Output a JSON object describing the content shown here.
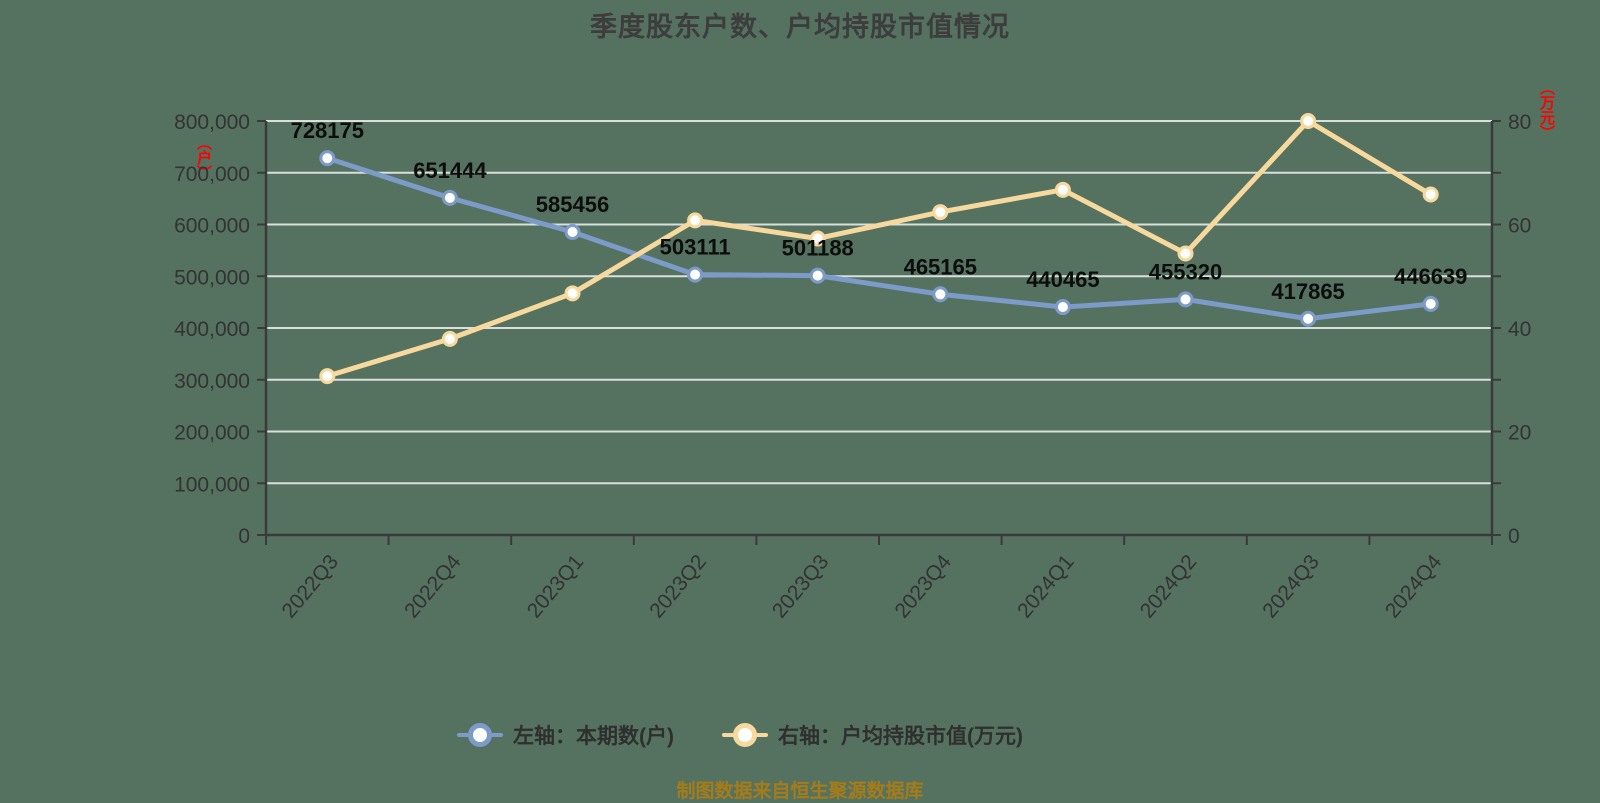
{
  "title": "季度股东户数、户均持股市值情况",
  "caption": "制图数据来自恒生聚源数据库",
  "left_axis": {
    "unit": "（户）",
    "tick_labels": [
      "0",
      "100,000",
      "200,000",
      "300,000",
      "400,000",
      "500,000",
      "600,000",
      "700,000",
      "800,000"
    ],
    "range": [
      0,
      800000
    ]
  },
  "right_axis": {
    "unit": "（万元）",
    "tick_labels": [
      "0",
      "20",
      "40",
      "60",
      "80"
    ],
    "range": [
      0,
      80
    ]
  },
  "legend": [
    {
      "label": "左轴：本期数(户)",
      "color": "#7d9bc8"
    },
    {
      "label": "右轴：户均持股市值(万元)",
      "color": "#f7d99d"
    }
  ],
  "chart_data": {
    "type": "line",
    "categories": [
      "2022Q3",
      "2022Q4",
      "2023Q1",
      "2023Q2",
      "2023Q3",
      "2023Q4",
      "2024Q1",
      "2024Q2",
      "2024Q3",
      "2024Q4"
    ],
    "series": [
      {
        "name": "本期数(户)",
        "axis": "left",
        "color": "#7d9bc8",
        "marker_fill": "#ffffff",
        "values": [
          728175,
          651444,
          585456,
          503111,
          501188,
          465165,
          440465,
          455320,
          417865,
          446639
        ],
        "data_labels": true
      },
      {
        "name": "户均持股市值(万元)",
        "axis": "right",
        "color": "#f7d99d",
        "marker_fill": "#ffffff",
        "values": [
          30.7,
          37.9,
          46.7,
          60.8,
          57.3,
          62.4,
          66.7,
          54.4,
          80.0,
          65.8
        ],
        "data_labels": false
      }
    ],
    "ylim_left": [
      0,
      800000
    ],
    "ylim_right": [
      0,
      80
    ],
    "grid": true,
    "legend_position": "bottom"
  },
  "colors": {
    "background": "#557260",
    "grid": "#ffffff",
    "axis": "#3a3a3a",
    "tick_text": "#333333",
    "title_text": "#3d3d3d",
    "legend_text": "#2f2f2f",
    "data_label_text": "#0d0d0d",
    "axis_unit_red": "#ff0000",
    "caption_gold": "#a67c18"
  }
}
